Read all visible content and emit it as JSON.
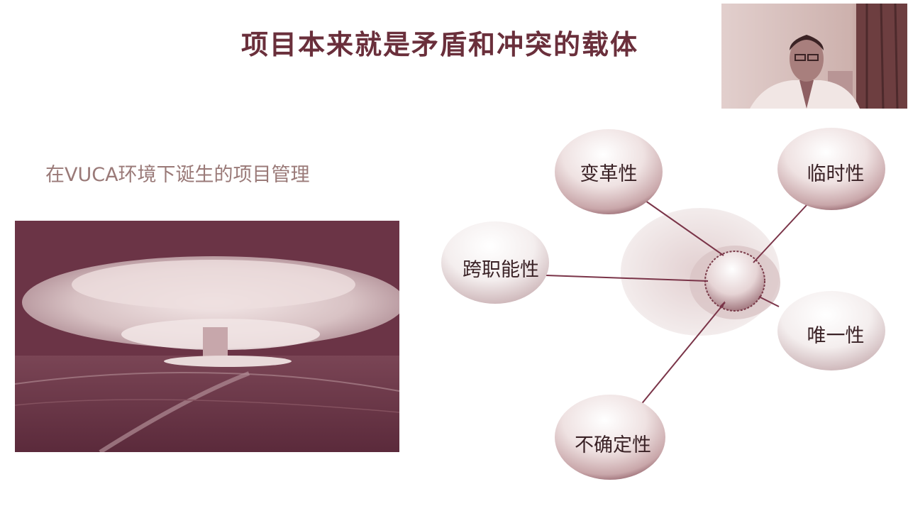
{
  "slide": {
    "title": "项目本来就是矛盾和冲突的载体",
    "subtitle": "在VUCA环境下诞生的项目管理"
  },
  "diagram": {
    "nodes": [
      {
        "id": "change",
        "label": "变革性"
      },
      {
        "id": "temporary",
        "label": "临时性"
      },
      {
        "id": "cross-functional",
        "label": "跨职能性"
      },
      {
        "id": "unique",
        "label": "唯一性"
      },
      {
        "id": "uncertain",
        "label": "不确定性"
      }
    ]
  },
  "colors": {
    "accent": "#6b3446",
    "title": "#6a2f3b",
    "subtitle": "#9a7a78"
  },
  "icons": {
    "photo": "mushroom-cloud-image",
    "webcam": "presenter-webcam"
  }
}
